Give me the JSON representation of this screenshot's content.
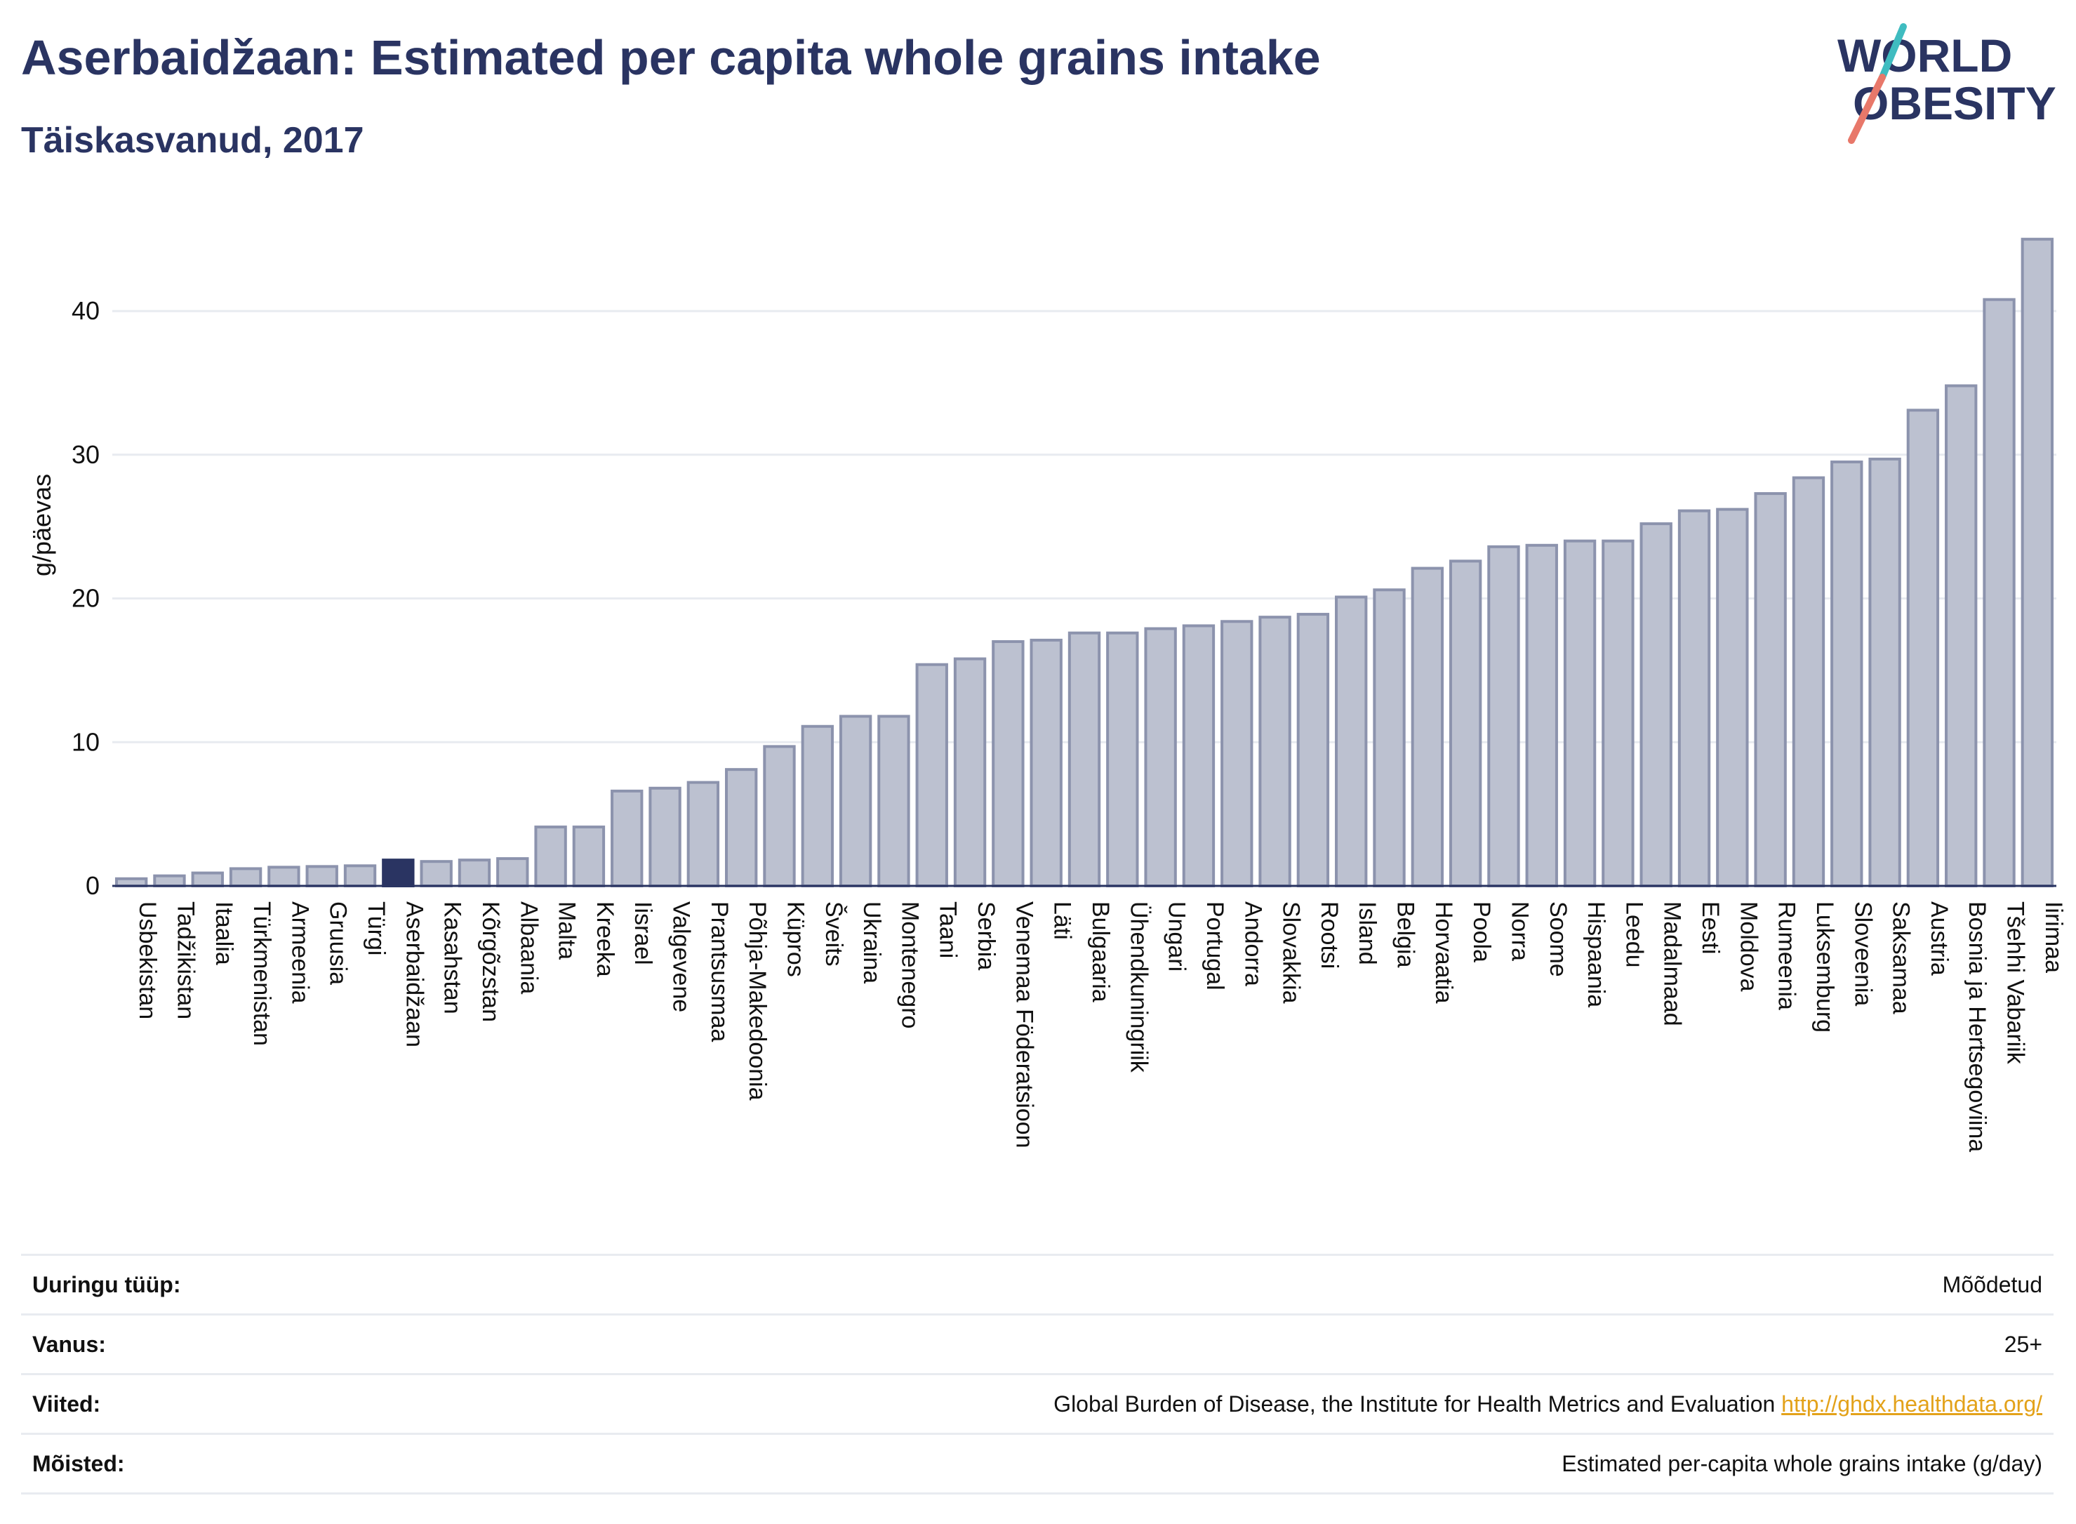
{
  "header": {
    "title": "Aserbaidžaan: Estimated per capita whole grains intake",
    "subtitle": "Täiskasvanud, 2017",
    "logo_line1": "WORLD",
    "logo_line2": "OBESITY"
  },
  "colors": {
    "text": "#2a3462",
    "bar": "#bcc1d0",
    "bar_stroke": "#8c93ad",
    "highlight": "#2a3462",
    "grid": "#e8ebf0",
    "link": "#e3a21a",
    "logo_teal": "#3fbcc0",
    "logo_coral": "#e8786a"
  },
  "chart_data": {
    "type": "bar",
    "ylabel": "g/päevas",
    "ylim": [
      0,
      46.5
    ],
    "yticks": [
      0,
      10,
      20,
      30,
      40
    ],
    "grid": true,
    "highlight": "Aserbaidžaan",
    "categories": [
      "Usbekistan",
      "Tadžikistan",
      "Itaalia",
      "Türkmenistan",
      "Armeenia",
      "Gruusia",
      "Türgi",
      "Aserbaidžaan",
      "Kasahstan",
      "Kõrgõzstan",
      "Albaania",
      "Malta",
      "Kreeka",
      "Iisrael",
      "Valgevene",
      "Prantsusmaa",
      "Põhja-Makedoonia",
      "Küpros",
      "Šveits",
      "Ukraina",
      "Montenegro",
      "Taani",
      "Serbia",
      "Venemaa Föderatsioon",
      "Läti",
      "Bulgaaria",
      "Ühendkuningriik",
      "Ungari",
      "Portugal",
      "Andorra",
      "Slovakkia",
      "Rootsi",
      "Island",
      "Belgia",
      "Horvaatia",
      "Poola",
      "Norra",
      "Soome",
      "Hispaania",
      "Leedu",
      "Madalmaad",
      "Eesti",
      "Moldova",
      "Rumeenia",
      "Luksemburg",
      "Sloveenia",
      "Saksamaa",
      "Austria",
      "Bosnia ja Hertsegoviina",
      "Tšehhi Vabariik",
      "Iirimaa"
    ],
    "values": [
      0.5,
      0.7,
      0.9,
      1.2,
      1.3,
      1.35,
      1.4,
      1.8,
      1.7,
      1.8,
      1.9,
      4.1,
      4.1,
      6.6,
      6.8,
      7.2,
      8.1,
      9.7,
      11.1,
      11.8,
      11.8,
      15.4,
      15.8,
      17.0,
      17.1,
      17.6,
      17.6,
      17.9,
      18.1,
      18.4,
      18.7,
      18.9,
      20.1,
      20.6,
      22.1,
      22.6,
      23.6,
      23.7,
      24.0,
      24.0,
      25.2,
      26.1,
      26.2,
      27.3,
      28.4,
      29.5,
      29.7,
      33.1,
      34.8,
      40.8,
      45.0
    ]
  },
  "info": {
    "rows": [
      {
        "key": "Uuringu tüüp:",
        "value": "Mõõdetud"
      },
      {
        "key": "Vanus:",
        "value": "25+"
      },
      {
        "key": "Viited:",
        "value": "Global Burden of Disease, the Institute for Health Metrics and Evaluation",
        "link": "http://ghdx.healthdata.org/"
      },
      {
        "key": "Mõisted:",
        "value": "Estimated per-capita whole grains intake (g/day)"
      }
    ]
  }
}
